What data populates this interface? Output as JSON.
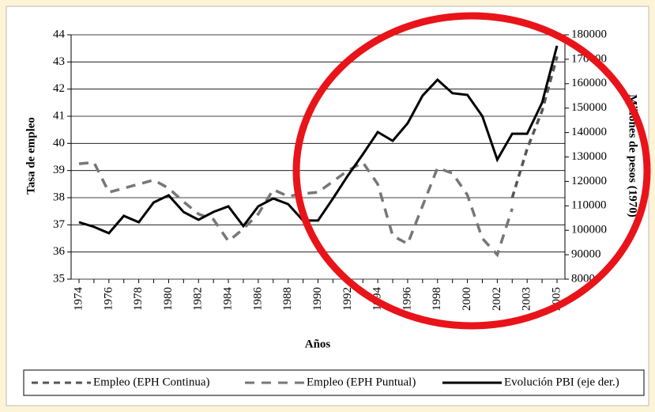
{
  "chart_data": {
    "type": "line",
    "x_label": "Años",
    "y_label": "Tasa de empleo",
    "y2_label": "Millones de pesos (1970)",
    "categories": [
      "1974",
      null,
      "1976",
      null,
      "1978",
      null,
      "1980",
      null,
      "1982",
      null,
      "1984",
      null,
      "1986",
      null,
      "1988",
      null,
      "1990",
      null,
      "1992",
      null,
      "1994",
      null,
      "1996",
      null,
      "1998",
      null,
      "2000",
      null,
      "2002",
      null,
      "2003",
      null,
      "2005"
    ],
    "ylim": [
      35,
      44
    ],
    "yticks": [
      35,
      36,
      37,
      38,
      39,
      40,
      41,
      42,
      43,
      44
    ],
    "y2lim": [
      80000,
      180000
    ],
    "y2ticks": [
      80000,
      90000,
      100000,
      110000,
      120000,
      130000,
      140000,
      150000,
      160000,
      170000,
      180000
    ],
    "grid": true,
    "series": [
      {
        "name": "Empleo (EPH Continua)",
        "color": "#555555",
        "dash": "8,6",
        "values": [
          null,
          null,
          null,
          null,
          null,
          null,
          null,
          null,
          null,
          null,
          null,
          null,
          null,
          null,
          null,
          null,
          null,
          null,
          null,
          null,
          null,
          null,
          null,
          null,
          null,
          null,
          null,
          null,
          null,
          38.0,
          39.8,
          41.2,
          43.2
        ]
      },
      {
        "name": "Empleo (EPH Puntual)",
        "color": "#777777",
        "dash": "12,9",
        "values": [
          39.25,
          39.3,
          38.2,
          38.35,
          38.5,
          38.65,
          38.35,
          37.85,
          37.4,
          37.2,
          36.4,
          36.85,
          37.4,
          38.3,
          38.05,
          38.15,
          38.2,
          38.6,
          39.0,
          39.3,
          38.5,
          36.6,
          36.3,
          37.7,
          39.1,
          38.9,
          38.1,
          36.5,
          35.9,
          37.6,
          null,
          null,
          null
        ]
      },
      {
        "name": "Evolución PBI (eje der.)",
        "color": "#000000",
        "axis": "y2",
        "values": [
          103300,
          101400,
          98800,
          105900,
          103300,
          111400,
          114300,
          107500,
          104300,
          107500,
          109800,
          101700,
          109800,
          113000,
          110700,
          104000,
          104000,
          113000,
          122400,
          131100,
          140200,
          136600,
          143800,
          155100,
          161600,
          156100,
          155400,
          146700,
          128900,
          139500,
          139500,
          152200,
          175500
        ]
      }
    ]
  }
}
